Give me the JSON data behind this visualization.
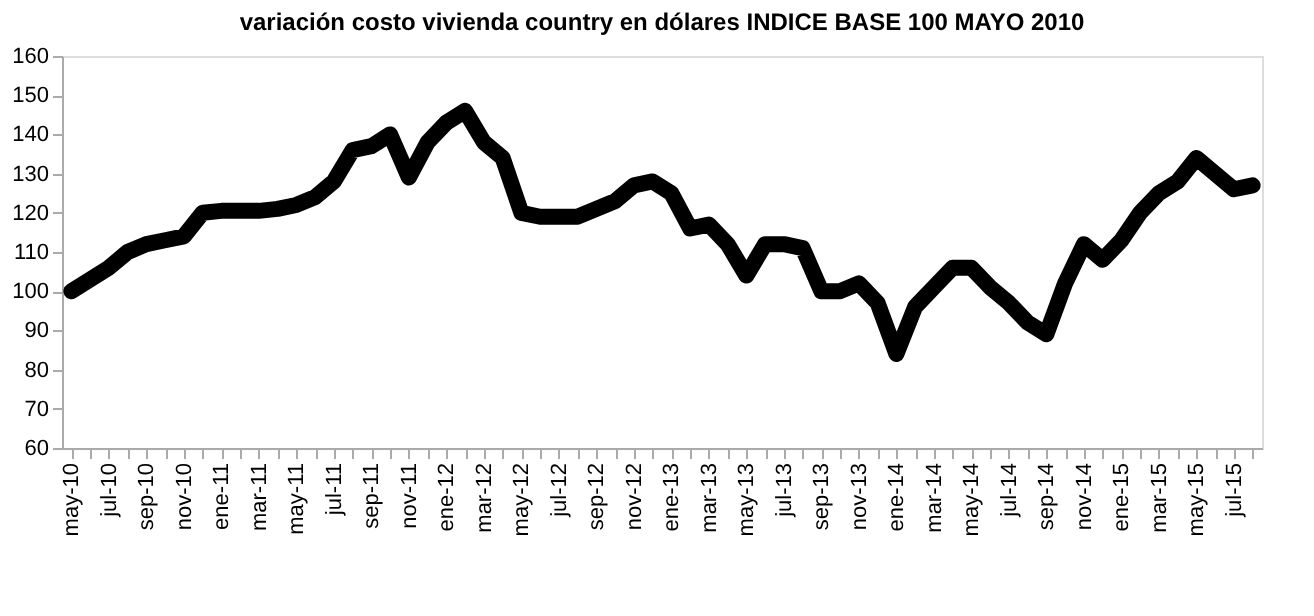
{
  "chart_data": {
    "type": "line",
    "title": "variación costo  vivienda country  en dólares INDICE BASE 100 MAYO 2010",
    "categories": [
      "may-10",
      null,
      "jul-10",
      null,
      "sep-10",
      null,
      "nov-10",
      null,
      "ene-11",
      null,
      "mar-11",
      null,
      "may-11",
      null,
      "jul-11",
      null,
      "sep-11",
      null,
      "nov-11",
      null,
      "ene-12",
      null,
      "mar-12",
      null,
      "may-12",
      null,
      "jul-12",
      null,
      "sep-12",
      null,
      "nov-12",
      null,
      "ene-13",
      null,
      "mar-13",
      null,
      "may-13",
      null,
      "jul-13",
      null,
      "sep-13",
      null,
      "nov-13",
      null,
      "ene-14",
      null,
      "mar-14",
      null,
      "may-14",
      null,
      "jul-14",
      null,
      "sep-14",
      null,
      "nov-14",
      null,
      "ene-15",
      null,
      "mar-15",
      null,
      "may-15",
      null,
      "jul-15",
      null
    ],
    "series": [
      {
        "color": "#000000",
        "values": [
          100,
          103,
          106,
          110,
          112,
          113,
          114,
          120,
          120.5,
          120.5,
          120.5,
          121,
          122,
          124,
          128,
          136,
          137,
          140,
          129,
          138,
          143,
          146,
          138,
          134,
          120,
          119,
          119,
          119,
          121,
          123,
          127,
          128,
          125,
          116,
          117,
          112,
          104,
          112,
          112,
          111,
          100,
          100,
          102,
          97,
          84,
          96,
          101,
          106,
          106,
          101,
          97,
          92,
          89,
          102,
          112,
          108,
          113,
          120,
          125,
          128,
          134,
          130,
          126,
          127
        ]
      }
    ],
    "ylim": [
      60,
      160
    ],
    "yticks": [
      60,
      70,
      80,
      90,
      100,
      110,
      120,
      130,
      140,
      150,
      160
    ],
    "grid": false,
    "legend": false,
    "line_style": "solid"
  }
}
